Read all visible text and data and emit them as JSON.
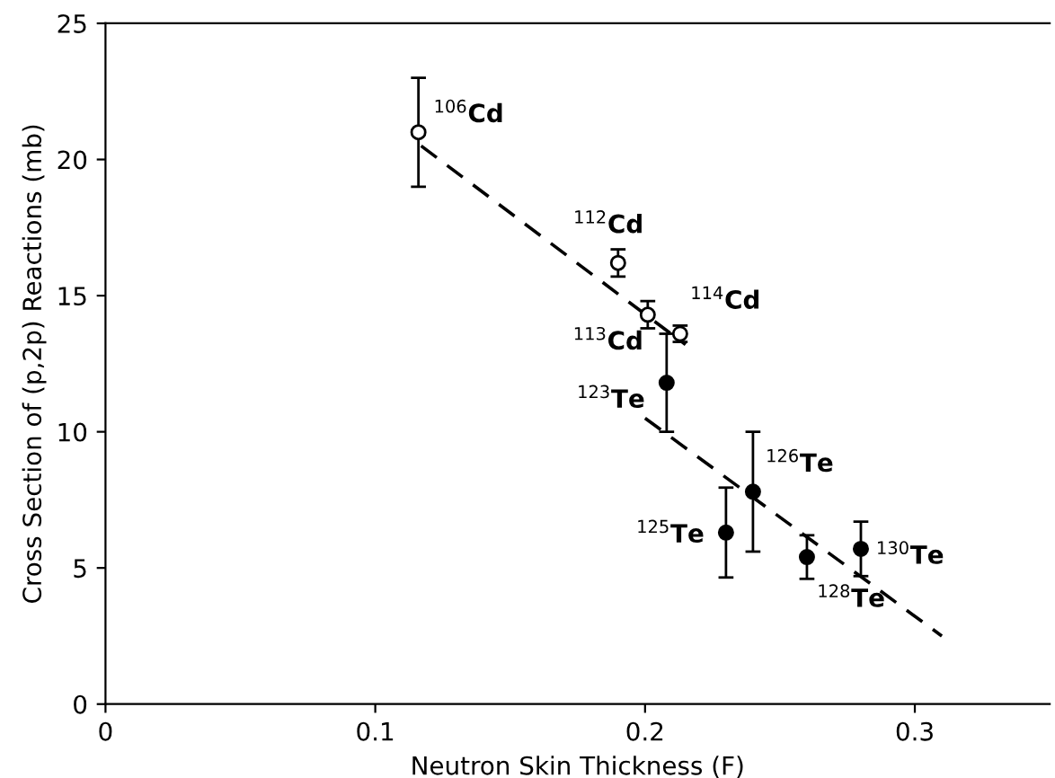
{
  "chart_data": {
    "type": "scatter",
    "xlabel": "Neutron Skin Thickness (F)",
    "ylabel": "Cross Section of (p,2p) Reactions (mb)",
    "xlim": [
      0,
      0.35
    ],
    "xticks": [
      0,
      0.1,
      0.2,
      0.3
    ],
    "ylim": [
      0,
      25
    ],
    "yticks": [
      0,
      5,
      10,
      15,
      20,
      25
    ],
    "marker": "circle",
    "grid": false,
    "series": [
      {
        "color": "#000000",
        "x": [
          0.116,
          0.19,
          0.201,
          0.213
        ],
        "values": [
          21.0,
          16.2,
          14.3,
          13.6
        ],
        "errors": [
          2.0,
          0.5,
          0.5,
          0.3
        ]
      },
      {
        "color": "#000000",
        "x": [
          0.208,
          0.23,
          0.24,
          0.26,
          0.28
        ],
        "values": [
          11.8,
          6.3,
          7.8,
          5.4,
          5.7
        ],
        "errors": [
          1.8,
          1.65,
          2.2,
          0.8,
          1.0
        ]
      },
      {
        "type": "line",
        "color": "#000000",
        "line_style": "dashed",
        "marker": "none",
        "x": [
          0.117,
          0.215
        ],
        "values": [
          20.5,
          13.2
        ]
      },
      {
        "type": "line",
        "color": "#000000",
        "line_style": "dashed",
        "marker": "none",
        "x": [
          0.2,
          0.31
        ],
        "values": [
          10.5,
          2.5
        ]
      }
    ],
    "annotations": [
      {
        "text": "$^{106}$Cd",
        "x": 0.116,
        "y": 21.0
      },
      {
        "text": "$^{112}$Cd",
        "x": 0.19,
        "y": 16.2
      },
      {
        "text": "$^{113}$Cd",
        "x": 0.201,
        "y": 14.3
      },
      {
        "text": "$^{114}$Cd",
        "x": 0.213,
        "y": 13.6
      },
      {
        "text": "$^{123}$Te",
        "x": 0.208,
        "y": 11.8
      },
      {
        "text": "$^{125}$Te",
        "x": 0.23,
        "y": 6.3
      },
      {
        "text": "$^{126}$Te",
        "x": 0.24,
        "y": 7.8
      },
      {
        "text": "$^{128}$Te",
        "x": 0.26,
        "y": 5.4
      },
      {
        "text": "$^{130}$Te",
        "x": 0.28,
        "y": 5.7
      }
    ]
  }
}
